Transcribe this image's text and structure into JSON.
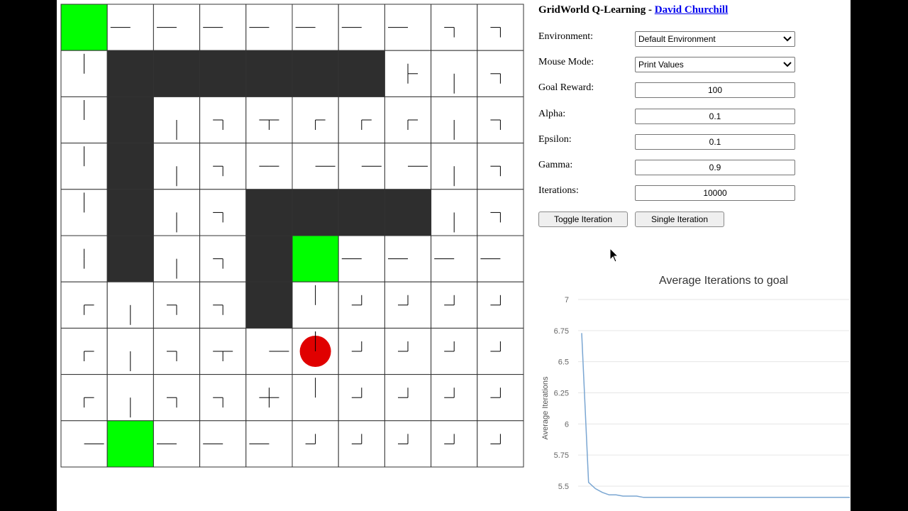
{
  "header": {
    "title": "GridWorld Q-Learning - ",
    "link": "David Churchill"
  },
  "fields": [
    {
      "label": "Environment:",
      "value": "Default Environment",
      "kind": "select"
    },
    {
      "label": "Mouse Mode:",
      "value": "Print Values",
      "kind": "select"
    },
    {
      "label": "Goal Reward:",
      "value": "100",
      "kind": "input"
    },
    {
      "label": "Alpha:",
      "value": "0.1",
      "kind": "input"
    },
    {
      "label": "Epsilon:",
      "value": "0.1",
      "kind": "input"
    },
    {
      "label": "Gamma:",
      "value": "0.9",
      "kind": "input"
    },
    {
      "label": "Iterations:",
      "value": "10000",
      "kind": "input"
    }
  ],
  "buttons": [
    "Toggle Iteration",
    "Single Iteration"
  ],
  "grid": {
    "rows": [
      [
        "G",
        "L",
        "L",
        "L",
        "L",
        "L",
        "L",
        "L",
        "LD",
        "LD"
      ],
      [
        "U",
        "W",
        "W",
        "W",
        "W",
        "W",
        "W",
        "UDR",
        "D",
        "LD"
      ],
      [
        "U",
        "W",
        "D",
        "LD",
        "LRD",
        "RD",
        "RD",
        "RD",
        "D",
        "LD"
      ],
      [
        "U",
        "W",
        "D",
        "LD",
        "LR",
        "R",
        "R",
        "R",
        "D",
        "LD"
      ],
      [
        "U",
        "W",
        "D",
        "LD",
        "W",
        "W",
        "W",
        "W",
        "D",
        "LD"
      ],
      [
        "UD",
        "W",
        "D",
        "LD",
        "W",
        "G",
        "L",
        "L",
        "L",
        "L"
      ],
      [
        "RD",
        "D",
        "LD",
        "LD",
        "W",
        "U",
        "LU",
        "LU",
        "LU",
        "LU"
      ],
      [
        "RD",
        "D",
        "LD",
        "LRD",
        "R",
        "U",
        "LU",
        "LU",
        "LU",
        "LU"
      ],
      [
        "RD",
        "D",
        "LD",
        "LD",
        "LRUD",
        "U",
        "LU",
        "LU",
        "LU",
        "LU"
      ],
      [
        "R",
        "G",
        "L",
        "L",
        "L",
        "LU",
        "LU",
        "LU",
        "LU",
        "LU"
      ]
    ],
    "agent": [
      7,
      5
    ]
  },
  "chart_data": {
    "type": "line",
    "title": "Average Iterations to goal",
    "ylabel": "Average Iterations",
    "values": [
      6.73,
      5.53,
      5.48,
      5.45,
      5.43,
      5.43,
      5.42,
      5.42,
      5.42,
      5.41,
      5.41,
      5.41,
      5.41,
      5.41,
      5.41,
      5.41,
      5.41,
      5.41,
      5.41,
      5.41,
      5.41,
      5.41,
      5.41,
      5.41,
      5.41,
      5.41,
      5.41,
      5.41,
      5.41,
      5.41,
      5.41,
      5.41,
      5.41,
      5.41,
      5.41,
      5.41,
      5.41,
      5.41,
      5.41,
      5.41
    ],
    "color": "#7aa6d2",
    "ylim": [
      5.35,
      7
    ],
    "yticks": [
      7,
      6.75,
      6.5,
      6.25,
      6,
      5.75,
      5.5
    ],
    "grid": true
  }
}
